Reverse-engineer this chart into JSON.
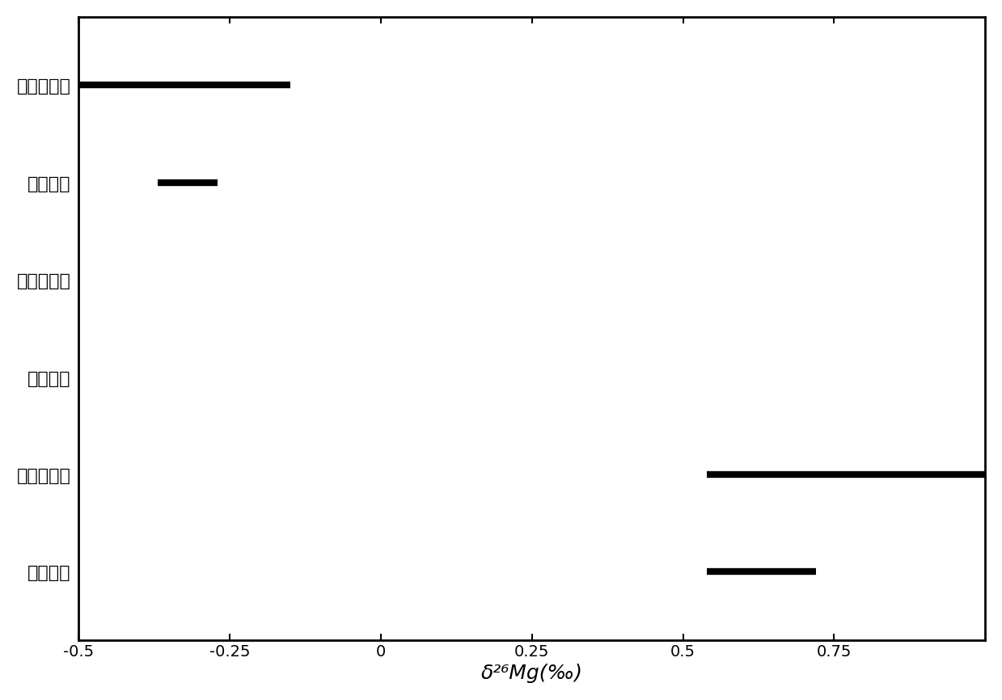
{
  "categories": [
    "煤系原油",
    "煤系烃源岩",
    "海相原油",
    "海相烃源岩",
    "陆相原油",
    "陆相烃源岩"
  ],
  "bars": [
    {
      "label": "煤系原油",
      "xmin": 0.54,
      "xmax": 0.72
    },
    {
      "label": "煤系烃源岩",
      "xmin": 0.54,
      "xmax": 1.0
    },
    {
      "label": "海相原油",
      "xmin": null,
      "xmax": null
    },
    {
      "label": "海相烃源岩",
      "xmin": null,
      "xmax": null
    },
    {
      "label": "陆相原油",
      "xmin": -0.37,
      "xmax": -0.27
    },
    {
      "label": "陆相烃源岩",
      "xmin": -0.5,
      "xmax": -0.15
    }
  ],
  "bar_color": "#000000",
  "bar_height": 0.12,
  "xlim": [
    -0.5,
    1.0
  ],
  "xticks": [
    -0.5,
    -0.25,
    0,
    0.25,
    0.5,
    0.75
  ],
  "xlabel": "δ²⁶Mg(‰)",
  "xlabel_fontsize": 18,
  "tick_fontsize": 14,
  "ytick_fontsize": 16,
  "background_color": "#ffffff",
  "linewidth": 6
}
